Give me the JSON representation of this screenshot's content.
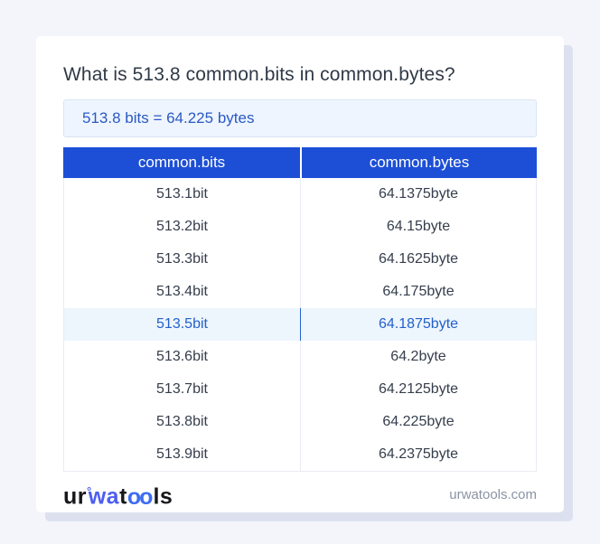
{
  "header": {
    "title": "What is 513.8 common.bits in common.bytes?"
  },
  "result": {
    "text": "513.8 bits = 64.225 bytes"
  },
  "table": {
    "columns": [
      "common.bits",
      "common.bytes"
    ],
    "rows": [
      {
        "bits": "513.1bit",
        "bytes": "64.1375byte",
        "highlighted": false
      },
      {
        "bits": "513.2bit",
        "bytes": "64.15byte",
        "highlighted": false
      },
      {
        "bits": "513.3bit",
        "bytes": "64.1625byte",
        "highlighted": false
      },
      {
        "bits": "513.4bit",
        "bytes": "64.175byte",
        "highlighted": false
      },
      {
        "bits": "513.5bit",
        "bytes": "64.1875byte",
        "highlighted": true
      },
      {
        "bits": "513.6bit",
        "bytes": "64.2byte",
        "highlighted": false
      },
      {
        "bits": "513.7bit",
        "bytes": "64.2125byte",
        "highlighted": false
      },
      {
        "bits": "513.8bit",
        "bytes": "64.225byte",
        "highlighted": false
      },
      {
        "bits": "513.9bit",
        "bytes": "64.2375byte",
        "highlighted": false
      }
    ]
  },
  "footer": {
    "logo_segments": [
      {
        "text": "ur",
        "style": "dark"
      },
      {
        "text": "°",
        "style": "ring"
      },
      {
        "text": "wa",
        "style": "blue"
      },
      {
        "text": "t",
        "style": "dark"
      },
      {
        "text": "oo",
        "style": "rings"
      },
      {
        "text": "ls",
        "style": "dark"
      }
    ],
    "domain": "urwatools.com"
  },
  "colors": {
    "page_bg": "#f4f5fa",
    "card_bg": "#ffffff",
    "card_shadow": "#dde1ef",
    "table_header_bg": "#1d4fd6",
    "table_header_text": "#ffffff",
    "result_bg": "#eef5fe",
    "result_border": "#d9e4f3",
    "result_text": "#2a59c4",
    "highlight_row_bg": "#edf5fd",
    "highlight_row_text": "#2360cb",
    "cell_text": "#353e4c",
    "logo_blue": "#4d5ef2",
    "domain_text": "#8b93a3"
  }
}
